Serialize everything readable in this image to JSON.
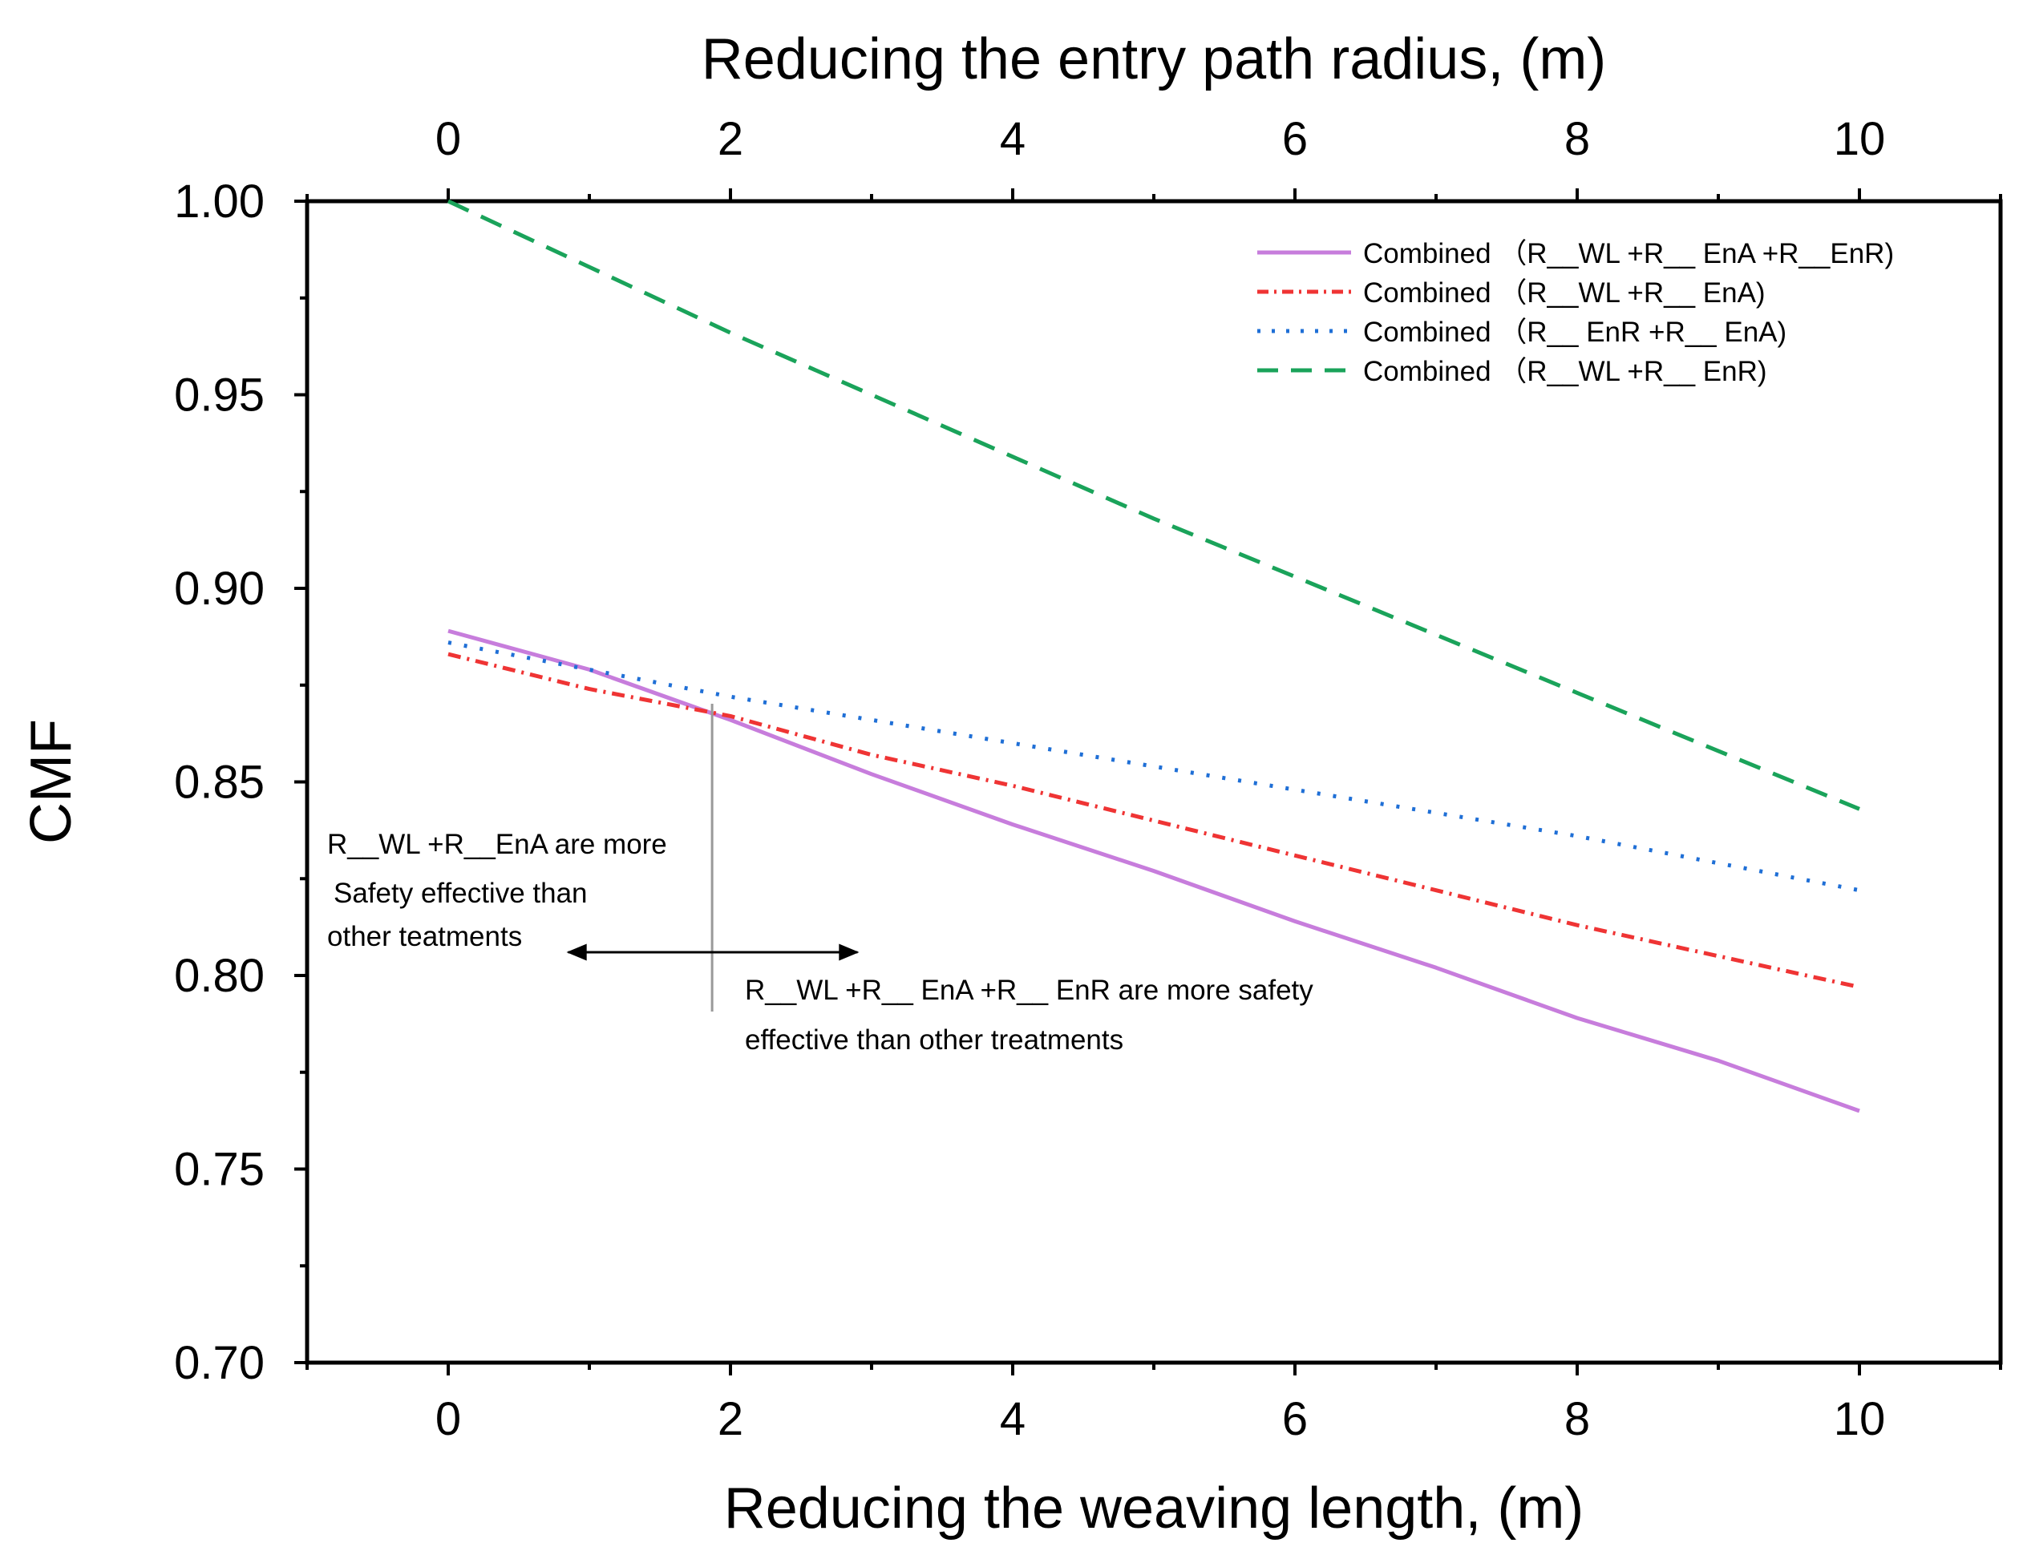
{
  "chart_data": {
    "type": "line",
    "title": "",
    "xlabel": "Reducing the weaving length, (m)",
    "x2label": "Reducing the entry path radius, (m)",
    "ylabel": "CMF",
    "xlim": [
      -1,
      11
    ],
    "ylim": [
      0.7,
      1.0
    ],
    "xticks": [
      0,
      2,
      4,
      6,
      8,
      10
    ],
    "xtick_labels": [
      "0",
      "2",
      "4",
      "6",
      "8",
      "10"
    ],
    "x2tick_labels": [
      "0",
      "2",
      "4",
      "6",
      "8",
      "10"
    ],
    "yticks": [
      0.7,
      0.75,
      0.8,
      0.85,
      0.9,
      0.95,
      1.0
    ],
    "ytick_labels": [
      "0.70",
      "0.75",
      "0.80",
      "0.85",
      "0.90",
      "0.95",
      "1.00"
    ],
    "grid": false,
    "legend_position": "top-right",
    "x": [
      0,
      1,
      2,
      3,
      4,
      5,
      6,
      7,
      8,
      9,
      10
    ],
    "series": [
      {
        "name": "Combined （R__WL +R__ EnA +R__EnR)",
        "style": "solid",
        "color": "#c77ddc",
        "values": [
          0.889,
          0.879,
          0.866,
          0.852,
          0.839,
          0.827,
          0.814,
          0.802,
          0.789,
          0.778,
          0.765
        ]
      },
      {
        "name": "Combined （R__WL +R__ EnA)",
        "style": "dashdot",
        "color": "#ef3434",
        "values": [
          0.883,
          0.874,
          0.867,
          0.857,
          0.849,
          0.84,
          0.831,
          0.822,
          0.813,
          0.805,
          0.797
        ]
      },
      {
        "name": "Combined （R__ EnR +R__ EnA)",
        "style": "dotted",
        "color": "#1f6fd6",
        "values": [
          0.886,
          0.879,
          0.872,
          0.866,
          0.86,
          0.854,
          0.848,
          0.842,
          0.836,
          0.829,
          0.822
        ]
      },
      {
        "name": "Combined （R__WL +R__ EnR)",
        "style": "dashed",
        "color": "#1aa35a",
        "values": [
          1.0,
          0.983,
          0.966,
          0.95,
          0.934,
          0.918,
          0.903,
          0.888,
          0.873,
          0.858,
          0.843
        ]
      }
    ],
    "annotations": {
      "left_lines": [
        "R__WL +R__EnA are more",
        "Safety effective than",
        "other teatments"
      ],
      "right_lines": [
        "R__WL +R__ EnA  +R__ EnR are more safety",
        "effective than other treatments"
      ],
      "divider_x": 1.87,
      "arrow_from_x": 0.85,
      "arrow_to_x": 2.9,
      "arrow_y": 0.806
    }
  }
}
